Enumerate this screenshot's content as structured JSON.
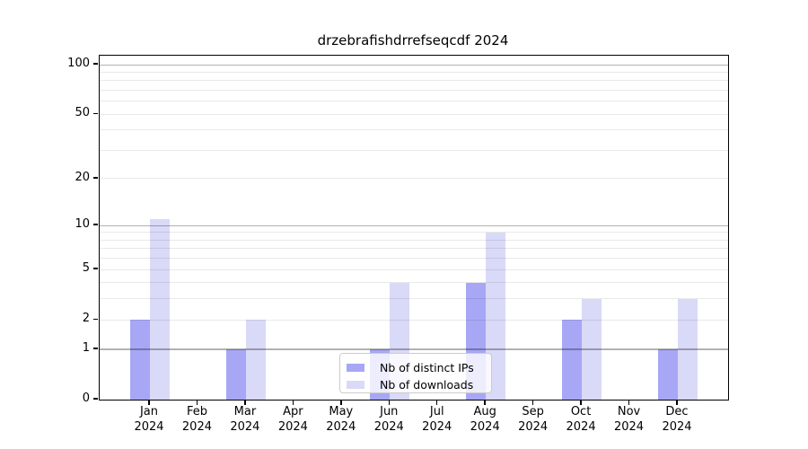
{
  "chart_data": {
    "type": "bar",
    "title": "drzebrafishdrrefseqcdf 2024",
    "categories": [
      "Jan",
      "Feb",
      "Mar",
      "Apr",
      "May",
      "Jun",
      "Jul",
      "Aug",
      "Sep",
      "Oct",
      "Nov",
      "Dec"
    ],
    "category_year": "2024",
    "series": [
      {
        "name": "Nb of distinct IPs",
        "color": "#a7a7f5",
        "values": [
          2,
          0,
          1,
          0,
          0,
          1,
          0,
          4,
          0,
          2,
          0,
          1
        ]
      },
      {
        "name": "Nb of downloads",
        "color": "#d9d9f8",
        "values": [
          11,
          0,
          2,
          0,
          0,
          4,
          0,
          9,
          0,
          3,
          0,
          3
        ]
      }
    ],
    "yscale": "log1p",
    "ylim": [
      0,
      113
    ],
    "yticks_labeled": [
      "0",
      "1",
      "2",
      "5",
      "10",
      "20",
      "50",
      "100"
    ],
    "ytick_values": [
      0,
      1,
      2,
      5,
      10,
      20,
      50,
      100
    ],
    "grid_major_values": [
      1,
      10,
      100
    ],
    "grid_minor_values": [
      2,
      3,
      4,
      5,
      6,
      7,
      8,
      9,
      20,
      30,
      40,
      50,
      60,
      70,
      80,
      90
    ],
    "legend": {
      "position": "lower center",
      "entries": [
        "Nb of distinct IPs",
        "Nb of downloads"
      ]
    }
  }
}
